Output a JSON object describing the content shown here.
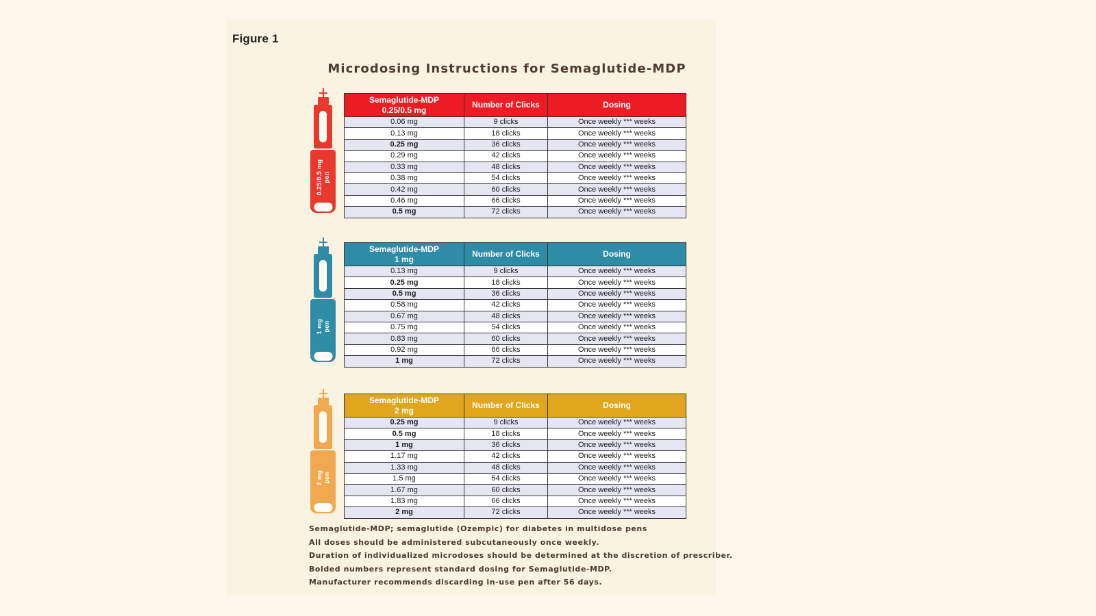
{
  "figure_label": "Figure 1",
  "title": "Microdosing Instructions for Semaglutide-MDP",
  "colors": {
    "page_background": "#FEF8EC",
    "panel_background": "#FAF3E2",
    "stripe_row": "#E5E6F1",
    "table_border": "#333333",
    "title_text": "#503B33",
    "footnote_text": "#4A382E"
  },
  "tables": [
    {
      "accent_color": "#ED1C24",
      "pen_color": "#E9392C",
      "pen": {
        "label_line1": "0.25/0.5 mg",
        "label_line2": "pen"
      },
      "header": {
        "col1_line1": "Semaglutide-MDP",
        "col1_line2": "0.25/0.5 mg",
        "col2": "Number of Clicks",
        "col3": "Dosing"
      },
      "rows": [
        {
          "dose": "0.06 mg",
          "clicks": "9 clicks",
          "dosing": "Once weekly *** weeks",
          "bold": false
        },
        {
          "dose": "0.13 mg",
          "clicks": "18 clicks",
          "dosing": "Once weekly *** weeks",
          "bold": false
        },
        {
          "dose": "0.25 mg",
          "clicks": "36 clicks",
          "dosing": "Once weekly *** weeks",
          "bold": true
        },
        {
          "dose": "0.29 mg",
          "clicks": "42 clicks",
          "dosing": "Once weekly *** weeks",
          "bold": false
        },
        {
          "dose": "0.33 mg",
          "clicks": "48 clicks",
          "dosing": "Once weekly *** weeks",
          "bold": false
        },
        {
          "dose": "0.38 mg",
          "clicks": "54 clicks",
          "dosing": "Once weekly *** weeks",
          "bold": false
        },
        {
          "dose": "0.42 mg",
          "clicks": "60 clicks",
          "dosing": "Once weekly *** weeks",
          "bold": false
        },
        {
          "dose": "0.46 mg",
          "clicks": "66 clicks",
          "dosing": "Once weekly *** weeks",
          "bold": false
        },
        {
          "dose": "0.5 mg",
          "clicks": "72 clicks",
          "dosing": "Once weekly *** weeks",
          "bold": true
        }
      ]
    },
    {
      "accent_color": "#2E8CA6",
      "pen_color": "#2E8CA6",
      "pen": {
        "label_line1": "1 mg",
        "label_line2": "pen"
      },
      "header": {
        "col1_line1": "Semaglutide-MDP",
        "col1_line2": "1 mg",
        "col2": "Number of Clicks",
        "col3": "Dosing"
      },
      "rows": [
        {
          "dose": "0.13 mg",
          "clicks": "9 clicks",
          "dosing": "Once weekly *** weeks",
          "bold": false
        },
        {
          "dose": "0.25 mg",
          "clicks": "18 clicks",
          "dosing": "Once weekly *** weeks",
          "bold": true
        },
        {
          "dose": "0.5 mg",
          "clicks": "36 clicks",
          "dosing": "Once weekly *** weeks",
          "bold": true
        },
        {
          "dose": "0.58 mg",
          "clicks": "42 clicks",
          "dosing": "Once weekly *** weeks",
          "bold": false
        },
        {
          "dose": "0.67 mg",
          "clicks": "48 clicks",
          "dosing": "Once weekly *** weeks",
          "bold": false
        },
        {
          "dose": "0.75 mg",
          "clicks": "54 clicks",
          "dosing": "Once weekly *** weeks",
          "bold": false
        },
        {
          "dose": "0.83 mg",
          "clicks": "60 clicks",
          "dosing": "Once weekly *** weeks",
          "bold": false
        },
        {
          "dose": "0.92 mg",
          "clicks": "66 clicks",
          "dosing": "Once weekly *** weeks",
          "bold": false
        },
        {
          "dose": "1 mg",
          "clicks": "72 clicks",
          "dosing": "Once weekly *** weeks",
          "bold": true
        }
      ]
    },
    {
      "accent_color": "#E2A51E",
      "pen_color": "#F0A94F",
      "pen": {
        "label_line1": "2 mg",
        "label_line2": "pen"
      },
      "header": {
        "col1_line1": "Semaglutide-MDP",
        "col1_line2": "2 mg",
        "col2": "Number of Clicks",
        "col3": "Dosing"
      },
      "rows": [
        {
          "dose": "0.25 mg",
          "clicks": "9 clicks",
          "dosing": "Once weekly *** weeks",
          "bold": true
        },
        {
          "dose": "0.5 mg",
          "clicks": "18 clicks",
          "dosing": "Once weekly *** weeks",
          "bold": true
        },
        {
          "dose": "1 mg",
          "clicks": "36 clicks",
          "dosing": "Once weekly *** weeks",
          "bold": true
        },
        {
          "dose": "1.17 mg",
          "clicks": "42 clicks",
          "dosing": "Once weekly *** weeks",
          "bold": false
        },
        {
          "dose": "1.33 mg",
          "clicks": "48 clicks",
          "dosing": "Once weekly *** weeks",
          "bold": false
        },
        {
          "dose": "1.5 mg",
          "clicks": "54 clicks",
          "dosing": "Once weekly *** weeks",
          "bold": false
        },
        {
          "dose": "1.67 mg",
          "clicks": "60 clicks",
          "dosing": "Once weekly *** weeks",
          "bold": false
        },
        {
          "dose": "1.83 mg",
          "clicks": "66 clicks",
          "dosing": "Once weekly *** weeks",
          "bold": false
        },
        {
          "dose": "2 mg",
          "clicks": "72 clicks",
          "dosing": "Once weekly *** weeks",
          "bold": true
        }
      ]
    }
  ],
  "footnotes": [
    "Semaglutide-MDP; semaglutide (Ozempic) for diabetes in multidose pens",
    "All doses should be administered subcutaneously once weekly.",
    "Duration of individualized microdoses should be determined at the discretion of prescriber.",
    "Bolded numbers represent standard dosing for Semaglutide-MDP.",
    "Manufacturer recommends discarding in-use pen after 56 days."
  ]
}
